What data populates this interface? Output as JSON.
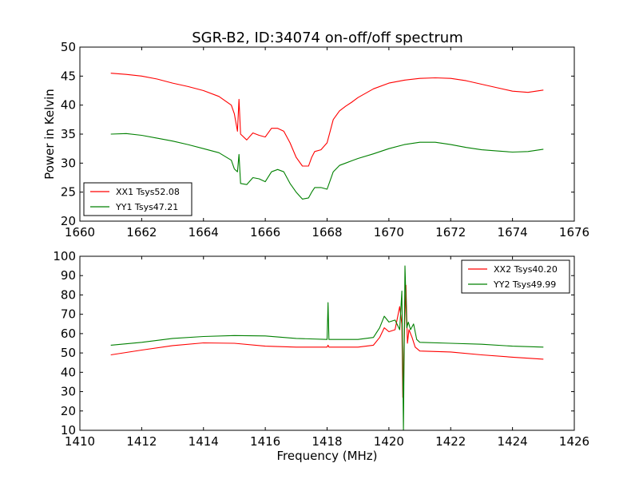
{
  "title": "SGR-B2, ID:34074 on-off/off spectrum",
  "chart_data": [
    {
      "type": "line",
      "title": "SGR-B2, ID:34074 on-off/off spectrum",
      "xlabel": "",
      "ylabel": "Power in Kelvin",
      "xlim": [
        1660,
        1676
      ],
      "ylim": [
        20,
        50
      ],
      "xticks": [
        1660,
        1662,
        1664,
        1666,
        1668,
        1670,
        1672,
        1674,
        1676
      ],
      "yticks": [
        20,
        25,
        30,
        35,
        40,
        45,
        50
      ],
      "grid": false,
      "legend_position": "lower-left",
      "series": [
        {
          "name": "XX1 Tsys52.08",
          "color": "#ff0000",
          "x": [
            1661.0,
            1661.5,
            1662.0,
            1662.5,
            1663.0,
            1663.5,
            1664.0,
            1664.5,
            1664.9,
            1665.0,
            1665.1,
            1665.15,
            1665.2,
            1665.4,
            1665.6,
            1665.8,
            1666.0,
            1666.2,
            1666.4,
            1666.6,
            1666.8,
            1667.0,
            1667.2,
            1667.4,
            1667.5,
            1667.6,
            1667.8,
            1668.0,
            1668.2,
            1668.4,
            1668.6,
            1668.8,
            1669.0,
            1669.5,
            1670.0,
            1670.5,
            1671.0,
            1671.5,
            1672.0,
            1672.5,
            1673.0,
            1673.5,
            1674.0,
            1674.5,
            1675.0
          ],
          "values": [
            45.5,
            45.3,
            45.0,
            44.5,
            43.8,
            43.2,
            42.5,
            41.5,
            40.0,
            38.5,
            35.5,
            41.0,
            35.0,
            34.0,
            35.2,
            34.8,
            34.5,
            36.0,
            36.0,
            35.5,
            33.5,
            31.0,
            29.5,
            29.5,
            31.0,
            32.0,
            32.3,
            33.5,
            37.5,
            39.0,
            39.8,
            40.5,
            41.3,
            42.8,
            43.8,
            44.3,
            44.6,
            44.7,
            44.6,
            44.2,
            43.6,
            43.0,
            42.4,
            42.2,
            42.6
          ]
        },
        {
          "name": "YY1 Tsys47.21",
          "color": "#008000",
          "x": [
            1661.0,
            1661.5,
            1662.0,
            1662.5,
            1663.0,
            1663.5,
            1664.0,
            1664.5,
            1664.9,
            1665.0,
            1665.1,
            1665.15,
            1665.2,
            1665.4,
            1665.6,
            1665.8,
            1666.0,
            1666.2,
            1666.4,
            1666.6,
            1666.8,
            1667.0,
            1667.2,
            1667.4,
            1667.5,
            1667.6,
            1667.8,
            1668.0,
            1668.2,
            1668.4,
            1668.6,
            1668.8,
            1669.0,
            1669.5,
            1670.0,
            1670.5,
            1671.0,
            1671.5,
            1672.0,
            1672.5,
            1673.0,
            1673.5,
            1674.0,
            1674.5,
            1675.0
          ],
          "values": [
            35.0,
            35.1,
            34.8,
            34.3,
            33.8,
            33.2,
            32.5,
            31.8,
            30.5,
            29.0,
            28.5,
            31.5,
            26.5,
            26.3,
            27.5,
            27.3,
            26.8,
            28.5,
            28.9,
            28.5,
            26.5,
            25.0,
            23.8,
            24.0,
            25.0,
            25.8,
            25.8,
            25.5,
            28.5,
            29.6,
            30.0,
            30.4,
            30.8,
            31.6,
            32.5,
            33.2,
            33.6,
            33.6,
            33.2,
            32.7,
            32.3,
            32.1,
            31.9,
            32.0,
            32.4
          ]
        }
      ]
    },
    {
      "type": "line",
      "title": "",
      "xlabel": "Frequency (MHz)",
      "ylabel": "",
      "xlim": [
        1410,
        1426
      ],
      "ylim": [
        10,
        100
      ],
      "xticks": [
        1410,
        1412,
        1414,
        1416,
        1418,
        1420,
        1422,
        1424,
        1426
      ],
      "yticks": [
        10,
        20,
        30,
        40,
        50,
        60,
        70,
        80,
        90,
        100
      ],
      "grid": false,
      "legend_position": "top-right",
      "series": [
        {
          "name": "XX2 Tsys40.20",
          "color": "#ff0000",
          "x": [
            1411.0,
            1412.0,
            1413.0,
            1414.0,
            1415.0,
            1416.0,
            1417.0,
            1418.0,
            1418.03,
            1418.06,
            1419.0,
            1419.5,
            1419.7,
            1419.85,
            1420.0,
            1420.2,
            1420.35,
            1420.42,
            1420.45,
            1420.5,
            1420.55,
            1420.6,
            1420.65,
            1420.75,
            1420.85,
            1421.0,
            1422.0,
            1423.0,
            1424.0,
            1425.0
          ],
          "values": [
            49.0,
            51.5,
            53.8,
            55.2,
            55.0,
            53.5,
            53.0,
            53.0,
            54.0,
            53.0,
            53.0,
            54.0,
            58.0,
            63.0,
            61.0,
            62.0,
            74.0,
            65.0,
            27.0,
            60.0,
            85.0,
            55.0,
            62.0,
            58.0,
            53.0,
            51.0,
            50.5,
            49.0,
            47.8,
            46.8
          ]
        },
        {
          "name": "YY2 Tsys49.99",
          "color": "#008000",
          "x": [
            1411.0,
            1412.0,
            1413.0,
            1414.0,
            1415.0,
            1416.0,
            1417.0,
            1418.0,
            1418.03,
            1418.06,
            1419.0,
            1419.5,
            1419.7,
            1419.85,
            1420.0,
            1420.2,
            1420.35,
            1420.42,
            1420.47,
            1420.52,
            1420.58,
            1420.63,
            1420.7,
            1420.8,
            1420.9,
            1421.0,
            1422.0,
            1423.0,
            1424.0,
            1425.0
          ],
          "values": [
            54.0,
            55.5,
            57.5,
            58.5,
            59.0,
            58.8,
            57.5,
            57.0,
            76.0,
            57.0,
            57.0,
            58.0,
            63.0,
            69.0,
            66.0,
            67.0,
            62.0,
            82.0,
            10.0,
            95.0,
            63.0,
            66.0,
            62.0,
            65.0,
            57.0,
            55.5,
            55.0,
            54.5,
            53.5,
            53.0
          ]
        }
      ]
    }
  ]
}
